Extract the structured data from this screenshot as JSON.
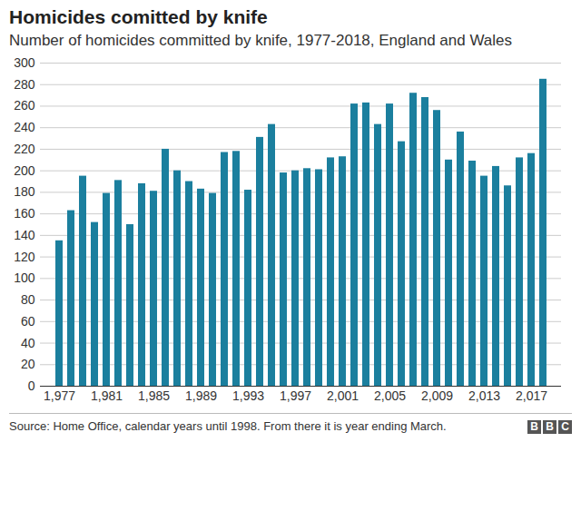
{
  "chart_data": {
    "type": "bar",
    "title": "Homicides comitted by knife",
    "subtitle": "Number of homicides committed by knife, 1977-2018, England and Wales",
    "source": "Source: Home Office, calendar years until 1998. From there it is year ending March.",
    "logo": "BBC",
    "x": [
      1977,
      1978,
      1979,
      1980,
      1981,
      1982,
      1983,
      1984,
      1985,
      1986,
      1987,
      1988,
      1989,
      1990,
      1991,
      1992,
      1993,
      1994,
      1995,
      1996,
      1997,
      1998,
      1999,
      2000,
      2001,
      2002,
      2003,
      2004,
      2005,
      2006,
      2007,
      2008,
      2009,
      2010,
      2011,
      2012,
      2013,
      2014,
      2015,
      2016,
      2017,
      2018
    ],
    "values": [
      135,
      163,
      195,
      152,
      179,
      191,
      150,
      188,
      181,
      220,
      200,
      190,
      183,
      179,
      217,
      218,
      182,
      231,
      243,
      198,
      200,
      202,
      201,
      212,
      213,
      262,
      263,
      243,
      262,
      227,
      272,
      268,
      256,
      210,
      236,
      209,
      195,
      204,
      186,
      212,
      216,
      285
    ],
    "xticks": [
      1977,
      1981,
      1985,
      1989,
      1993,
      1997,
      2001,
      2005,
      2009,
      2013,
      2017
    ],
    "color": "#1b7f9e",
    "ylim": [
      0,
      300
    ],
    "yticks": [
      0,
      20,
      40,
      60,
      80,
      100,
      120,
      140,
      160,
      180,
      200,
      220,
      240,
      260,
      280,
      300
    ],
    "grid": true
  }
}
